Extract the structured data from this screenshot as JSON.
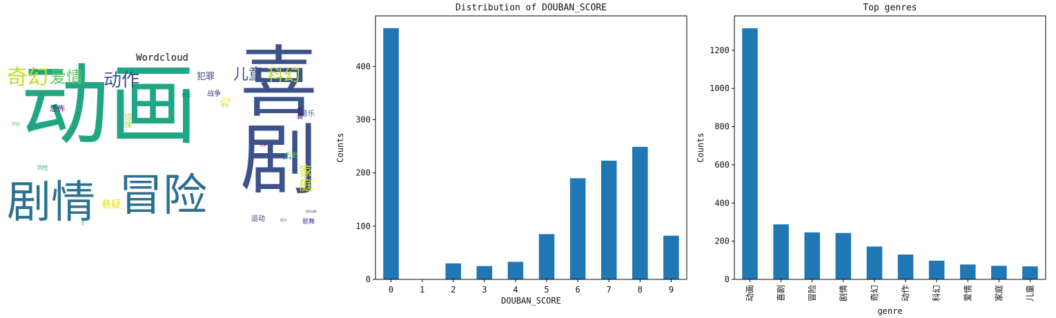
{
  "chart_data": [
    {
      "type": "wordcloud",
      "title": "Wordcloud",
      "words": [
        {
          "text": "动画",
          "color": "#21a685"
        },
        {
          "text": "喜剧",
          "color": "#3b528b"
        },
        {
          "text": "剧情",
          "color": "#2c728e"
        },
        {
          "text": "冒险",
          "color": "#2c6f8e"
        },
        {
          "text": "奇幻",
          "color": "#bddf26"
        },
        {
          "text": "爱情",
          "color": "#5ec962"
        },
        {
          "text": "动作",
          "color": "#3b528b"
        },
        {
          "text": "儿童",
          "color": "#3b528b"
        },
        {
          "text": "科幻",
          "color": "#b5de2b"
        },
        {
          "text": "家庭",
          "color": "#d8e219"
        },
        {
          "text": "悬疑",
          "color": "#dde318"
        },
        {
          "text": "犯罪",
          "color": "#414487"
        },
        {
          "text": "恐怖",
          "color": "#481f70"
        },
        {
          "text": "战争",
          "color": "#472d7b"
        },
        {
          "text": "惊悚",
          "color": "#9fda3a"
        },
        {
          "text": "音乐",
          "color": "#3b528b"
        },
        {
          "text": "历史",
          "color": "#5ec962"
        },
        {
          "text": "运动",
          "color": "#482878"
        },
        {
          "text": "歌舞",
          "color": "#3e4a89"
        },
        {
          "text": "古装",
          "color": "#440154"
        },
        {
          "text": "同性",
          "color": "#35b779"
        },
        {
          "text": "武侠",
          "color": "#fde725"
        },
        {
          "text": "传记",
          "color": "#31688e"
        },
        {
          "text": "情色",
          "color": "#addc30"
        },
        {
          "text": "西部",
          "color": "#6ece58"
        },
        {
          "text": "灾难",
          "color": "#482878"
        },
        {
          "text": "短片",
          "color": "#26828e"
        },
        {
          "text": "纪录片",
          "color": "#1f9e89"
        },
        {
          "text": "真人秀",
          "color": "#3b528b"
        },
        {
          "text": "黑色电影",
          "color": "#414487"
        }
      ]
    },
    {
      "type": "bar",
      "title": "Distribution of DOUBAN_SCORE",
      "xlabel": "DOUBAN_SCORE",
      "ylabel": "Counts",
      "categories": [
        "0",
        "1",
        "2",
        "3",
        "4",
        "5",
        "6",
        "7",
        "8",
        "9"
      ],
      "values": [
        472,
        0,
        30,
        25,
        33,
        85,
        190,
        223,
        249,
        82
      ],
      "ylim": [
        0,
        495
      ],
      "yticks": [
        0,
        100,
        200,
        300,
        400
      ],
      "grid": false,
      "bar_color": "#1f77b4"
    },
    {
      "type": "bar",
      "title": "Top genres",
      "xlabel": "genre",
      "ylabel": "Counts",
      "categories": [
        "动画",
        "喜剧",
        "冒险",
        "剧情",
        "奇幻",
        "动作",
        "科幻",
        "爱情",
        "家庭",
        "儿童"
      ],
      "values": [
        1315,
        288,
        246,
        243,
        172,
        130,
        98,
        78,
        71,
        68
      ],
      "ylim": [
        0,
        1380
      ],
      "yticks": [
        0,
        200,
        400,
        600,
        800,
        1000,
        1200
      ],
      "grid": false,
      "bar_color": "#1f77b4"
    }
  ]
}
